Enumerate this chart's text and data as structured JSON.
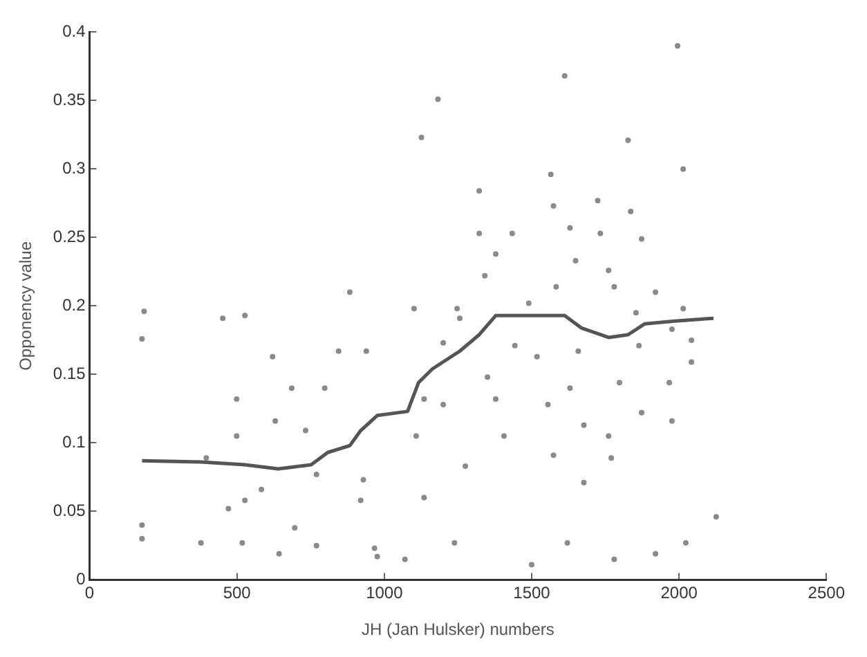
{
  "chart_data": {
    "type": "scatter",
    "xlabel": "JH (Jan Hulsker) numbers",
    "ylabel": "Opponency value",
    "xlim": [
      0,
      2500
    ],
    "xticks": [
      0,
      500,
      1000,
      1500,
      2000,
      2500
    ],
    "ylim": [
      0,
      0.4
    ],
    "yticks": [
      0,
      0.05,
      0.1,
      0.15,
      0.2,
      0.25,
      0.3,
      0.35,
      0.4
    ],
    "grid": false,
    "legend": false,
    "series": [
      {
        "type": "scatter",
        "color": "#8a8a8a",
        "marker": "circle",
        "x": [
          178,
          178,
          178,
          185,
          396,
          378,
          452,
          499,
          499,
          471,
          527,
          518,
          527,
          583,
          621,
          630,
          643,
          696,
          686,
          733,
          770,
          798,
          770,
          845,
          883,
          929,
          939,
          967,
          976,
          920,
          1101,
          1126,
          1108,
          1135,
          1135,
          1182,
          1200,
          1247,
          1200,
          1275,
          1322,
          1322,
          1341,
          1378,
          1350,
          1378,
          1406,
          1443,
          1434,
          1490,
          1518,
          1555,
          1565,
          1574,
          1574,
          1583,
          1612,
          1630,
          1630,
          1649,
          1658,
          1677,
          1677,
          1724,
          1733,
          1761,
          1770,
          1761,
          1780,
          1798,
          1836,
          1854,
          1864,
          1873,
          1873,
          1920,
          1967,
          1976,
          1976,
          2014,
          2014,
          2042,
          2042,
          2023,
          2126,
          1995,
          1920,
          1780,
          1500,
          1621,
          1070,
          1238,
          1256,
          1827
        ],
        "values": [
          0.176,
          0.04,
          0.03,
          0.196,
          0.089,
          0.027,
          0.191,
          0.132,
          0.105,
          0.052,
          0.058,
          0.027,
          0.193,
          0.066,
          0.163,
          0.116,
          0.019,
          0.038,
          0.14,
          0.109,
          0.025,
          0.14,
          0.077,
          0.167,
          0.21,
          0.073,
          0.167,
          0.023,
          0.017,
          0.058,
          0.198,
          0.323,
          0.105,
          0.06,
          0.132,
          0.351,
          0.173,
          0.198,
          0.128,
          0.083,
          0.284,
          0.253,
          0.222,
          0.238,
          0.148,
          0.132,
          0.105,
          0.171,
          0.253,
          0.202,
          0.163,
          0.128,
          0.296,
          0.273,
          0.091,
          0.214,
          0.368,
          0.257,
          0.14,
          0.233,
          0.167,
          0.113,
          0.071,
          0.277,
          0.253,
          0.226,
          0.089,
          0.105,
          0.214,
          0.144,
          0.269,
          0.195,
          0.171,
          0.122,
          0.249,
          0.21,
          0.144,
          0.183,
          0.116,
          0.3,
          0.198,
          0.175,
          0.159,
          0.027,
          0.046,
          0.39,
          0.019,
          0.015,
          0.011,
          0.027,
          0.015,
          0.027,
          0.191,
          0.321
        ]
      },
      {
        "type": "line",
        "color": "#555555",
        "marker": "none",
        "line_style": "solid",
        "x": [
          178,
          378,
          527,
          640,
          752,
          808,
          883,
          920,
          976,
          1079,
          1116,
          1163,
          1256,
          1322,
          1378,
          1612,
          1668,
          1761,
          1827,
          1884,
          1986,
          2117
        ],
        "values": [
          0.087,
          0.086,
          0.084,
          0.081,
          0.084,
          0.093,
          0.098,
          0.109,
          0.12,
          0.123,
          0.144,
          0.154,
          0.167,
          0.179,
          0.193,
          0.193,
          0.184,
          0.177,
          0.179,
          0.187,
          0.189,
          0.191
        ]
      }
    ]
  }
}
